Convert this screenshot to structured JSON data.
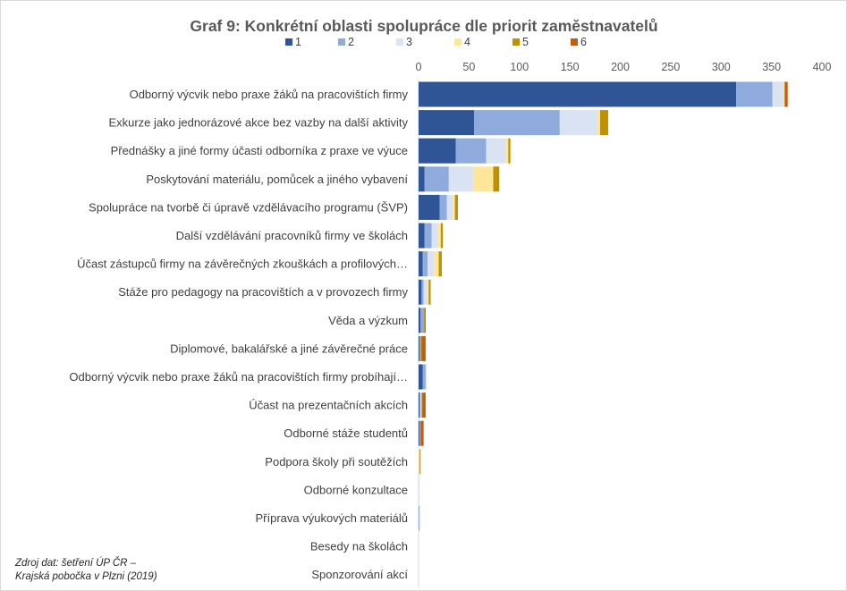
{
  "chart_data": {
    "type": "bar",
    "orientation": "horizontal",
    "stacked": true,
    "title": "Graf 9: Konkrétní oblasti spolupráce dle priorit  zaměstnavatelů",
    "xlim": [
      0,
      400
    ],
    "x_ticks": [
      "0",
      "50",
      "100",
      "150",
      "200",
      "250",
      "300",
      "350",
      "400"
    ],
    "x_axis_position": "top",
    "grid": false,
    "legend_position": "top",
    "categories": [
      "Odborný výcvik nebo praxe žáků na pracovištích firmy",
      "Exkurze jako jednorázové akce bez vazby na další aktivity",
      "Přednášky a jiné formy účasti odborníka z praxe ve výuce",
      "Poskytování materiálu, pomůcek a jiného vybavení",
      "Spolupráce na tvorbě či úpravě vzdělávacího programu (ŠVP)",
      "Další vzdělávání pracovníků firmy ve školách",
      "Účast zástupců firmy na závěrečných zkouškách a profilových…",
      "Stáže pro pedagogy na pracovištích a v provozech firmy",
      "Věda a výzkum",
      "Diplomové, bakalářské a jiné závěrečné práce",
      "Odborný výcvik nebo praxe žáků na pracovištích firmy probíhají…",
      "Účast na prezentačních akcích",
      "Odborné stáže studentů",
      "Podpora školy při soutěžích",
      "Odborné konzultace",
      "Příprava výukových materiálů",
      "Besedy na školách",
      "Sponzorování akcí"
    ],
    "series": [
      {
        "name": "1",
        "color": "#2f5597",
        "values": [
          315,
          55,
          37,
          6,
          21,
          6,
          4,
          3,
          2,
          1,
          4,
          1,
          1,
          0,
          0,
          0,
          0,
          0
        ]
      },
      {
        "name": "2",
        "color": "#8faadc",
        "values": [
          36,
          85,
          30,
          24,
          7,
          7,
          5,
          2,
          3,
          1,
          3,
          1,
          1,
          0,
          0,
          1,
          0,
          0
        ]
      },
      {
        "name": "3",
        "color": "#dae3f3",
        "values": [
          10,
          37,
          19,
          24,
          6,
          6,
          6,
          4,
          0,
          0,
          1,
          1,
          0,
          0,
          1,
          0,
          0,
          0
        ]
      },
      {
        "name": "4",
        "color": "#ffe699",
        "values": [
          2,
          3,
          3,
          20,
          2,
          3,
          5,
          1,
          0,
          0,
          0,
          0,
          0,
          1,
          0,
          0,
          0,
          0
        ]
      },
      {
        "name": "5",
        "color": "#bf9000",
        "values": [
          0,
          8,
          2,
          6,
          3,
          2,
          3,
          2,
          1,
          1,
          0,
          1,
          0,
          1,
          0,
          0,
          0,
          0
        ]
      },
      {
        "name": "6",
        "color": "#c55a11",
        "values": [
          3,
          0,
          0,
          0,
          0,
          0,
          0,
          0,
          1,
          4,
          0,
          3,
          3,
          0,
          0,
          0,
          0,
          0
        ]
      }
    ]
  },
  "source_note": {
    "line1": "Zdroj dat: šetření ÚP ČR –",
    "line2": "Krajská pobočka v Plzni (2019)"
  }
}
